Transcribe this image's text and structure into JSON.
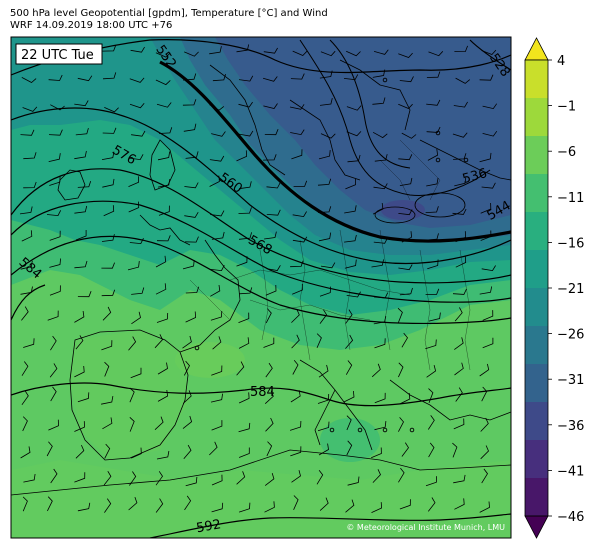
{
  "title": {
    "line1": "500 hPa level Geopotential [gpdm], Temperature [°C] and Wind",
    "line2": "WRF 14.09.2019 18:00 UTC +76"
  },
  "valid_time_box": "22 UTC Tue",
  "copyright": "© Meteorological Institute Munich, LMU",
  "geopotential_contours": [
    "528",
    "536",
    "544",
    "552",
    "560",
    "568",
    "576",
    "584",
    "584",
    "592"
  ],
  "colorbar": {
    "ticks": [
      "4",
      "−1",
      "−6",
      "−11",
      "−16",
      "−21",
      "−26",
      "−31",
      "−36",
      "−41",
      "−46"
    ],
    "colors": [
      "#f2e51d",
      "#c9df2b",
      "#9dd93b",
      "#6ccd59",
      "#44bf70",
      "#29af7f",
      "#1f9e89",
      "#228c8d",
      "#2a788e",
      "#33638d",
      "#3e4a89",
      "#472f7d",
      "#481769",
      "#440154"
    ]
  }
}
